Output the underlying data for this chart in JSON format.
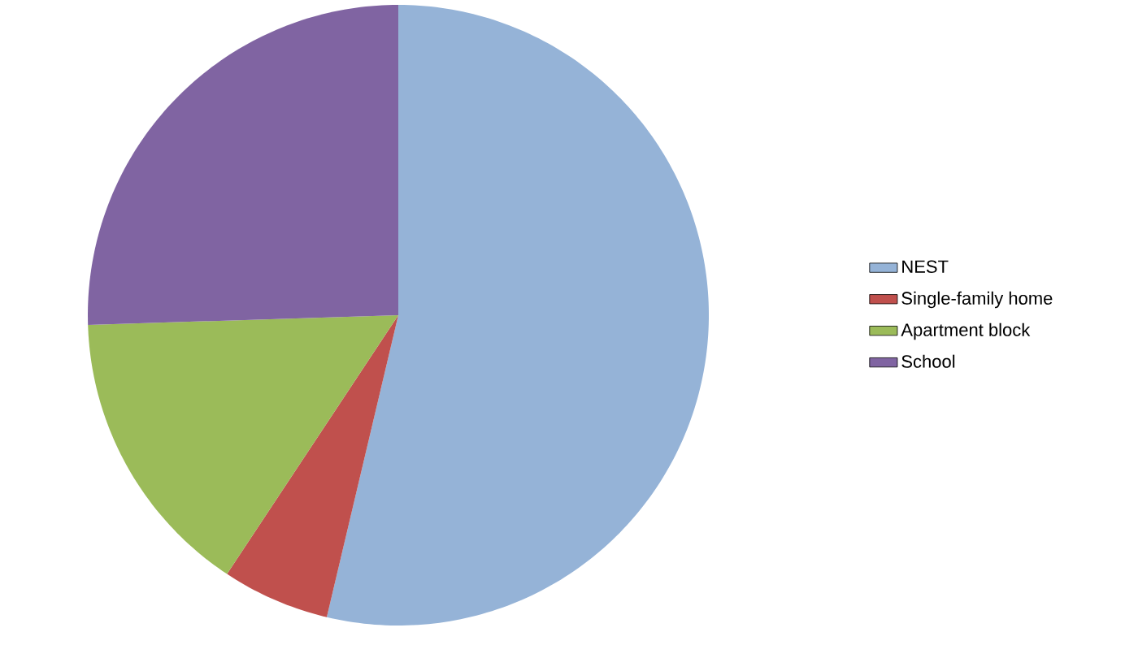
{
  "chart_data": {
    "type": "pie",
    "categories": [
      "NEST",
      "Single-family home",
      "Apartment block",
      "School"
    ],
    "values": [
      53.7,
      5.6,
      15.2,
      25.5
    ],
    "colors": [
      "#95b3d7",
      "#c0504d",
      "#9bbb59",
      "#8064a2"
    ],
    "legend": "right"
  }
}
